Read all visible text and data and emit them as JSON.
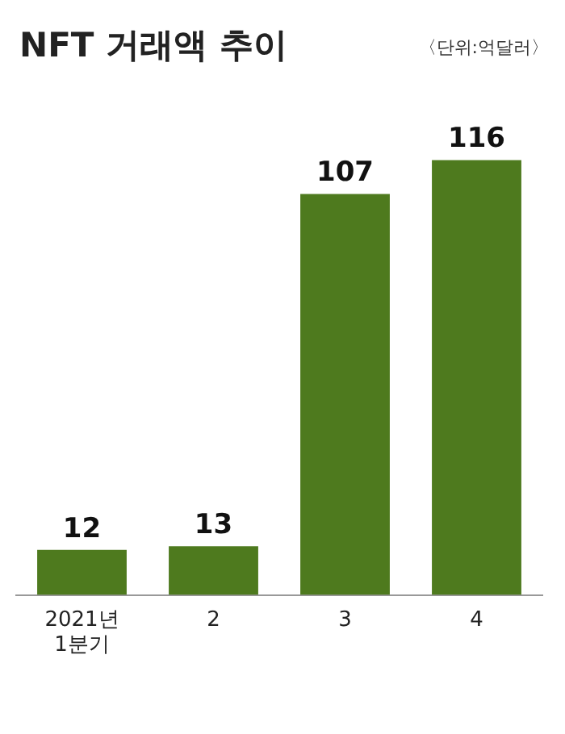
{
  "chart_data": {
    "type": "bar",
    "title": "NFT 거래액 추이",
    "subtitle": "〈단위:억달러〉",
    "categories": [
      "2021년\n1분기",
      "2",
      "3",
      "4"
    ],
    "values": [
      12,
      13,
      107,
      116
    ],
    "color": "#4e7a1e",
    "data_labels": true,
    "grid": false,
    "legend": false
  }
}
